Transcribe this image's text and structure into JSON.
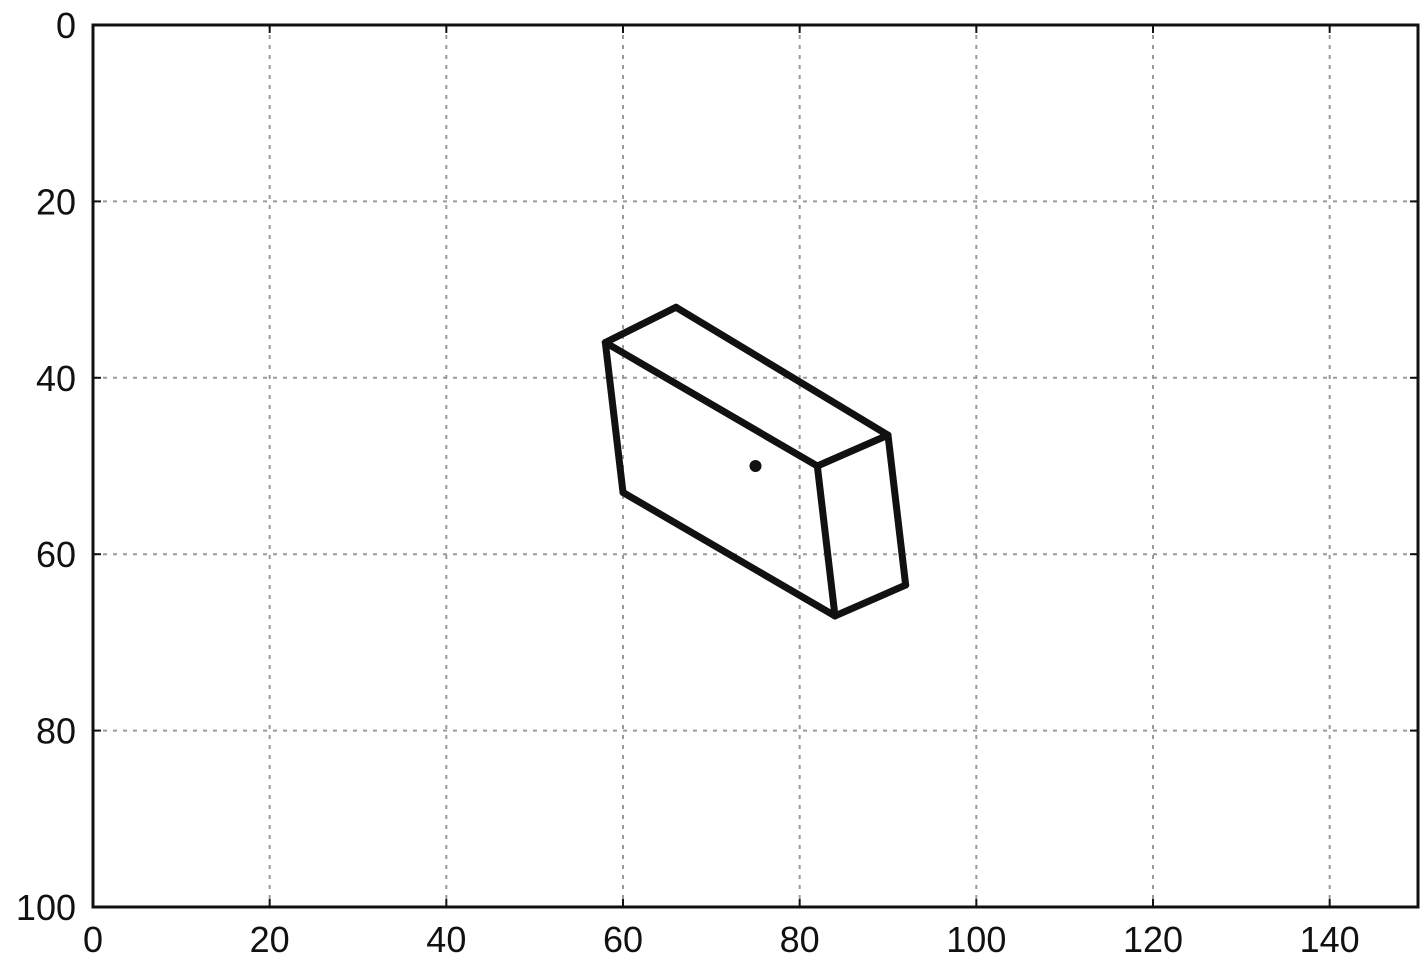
{
  "chart_data": {
    "type": "line",
    "title": "",
    "xlabel": "",
    "ylabel": "",
    "xlim": [
      0,
      150
    ],
    "ylim": [
      100,
      0
    ],
    "y_inverted": true,
    "grid": true,
    "x_ticks": [
      "0",
      "20",
      "40",
      "60",
      "80",
      "100",
      "120",
      "140"
    ],
    "y_ticks": [
      "0",
      "20",
      "40",
      "60",
      "80",
      "100"
    ],
    "line_color": "#111111",
    "series": [
      {
        "edges": [
          [
            [
              58,
              36
            ],
            [
              66,
              32
            ]
          ],
          [
            [
              66,
              32
            ],
            [
              90,
              46.5
            ]
          ],
          [
            [
              90,
              46.5
            ],
            [
              82,
              50
            ]
          ],
          [
            [
              82,
              50
            ],
            [
              58,
              36
            ]
          ],
          [
            [
              58,
              36
            ],
            [
              60,
              53
            ]
          ],
          [
            [
              60,
              53
            ],
            [
              84,
              67
            ]
          ],
          [
            [
              84,
              67
            ],
            [
              82,
              50
            ]
          ],
          [
            [
              90,
              46.5
            ],
            [
              92,
              63.5
            ]
          ],
          [
            [
              92,
              63.5
            ],
            [
              84,
              67
            ]
          ]
        ]
      }
    ],
    "points": [
      {
        "x": 75,
        "y": 50
      }
    ]
  }
}
